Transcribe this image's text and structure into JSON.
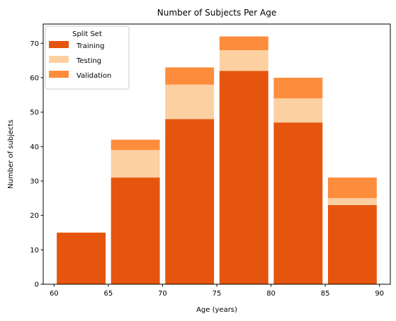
{
  "chart_data": {
    "type": "bar",
    "stacked": true,
    "title": "Number of Subjects Per Age",
    "xlabel": "Age (years)",
    "ylabel": "Number of subjects",
    "xlim": [
      59,
      91
    ],
    "ylim": [
      0,
      75.6
    ],
    "xticks": [
      60,
      65,
      70,
      75,
      80,
      85,
      90
    ],
    "yticks": [
      0,
      10,
      20,
      30,
      40,
      50,
      60,
      70
    ],
    "bins": [
      [
        60,
        65
      ],
      [
        65,
        70
      ],
      [
        70,
        75
      ],
      [
        75,
        80
      ],
      [
        80,
        85
      ],
      [
        85,
        90
      ]
    ],
    "series": [
      {
        "name": "Training",
        "color": "#e6550d",
        "values": [
          15,
          31,
          48,
          62,
          47,
          23
        ]
      },
      {
        "name": "Testing",
        "color": "#fdd0a2",
        "values": [
          0,
          8,
          10,
          6,
          7,
          2
        ]
      },
      {
        "name": "Validation",
        "color": "#fd8d3c",
        "values": [
          0,
          3,
          5,
          4,
          6,
          6
        ]
      }
    ],
    "legend": {
      "title": "Split Set",
      "position": "top-left"
    },
    "grid": false
  }
}
